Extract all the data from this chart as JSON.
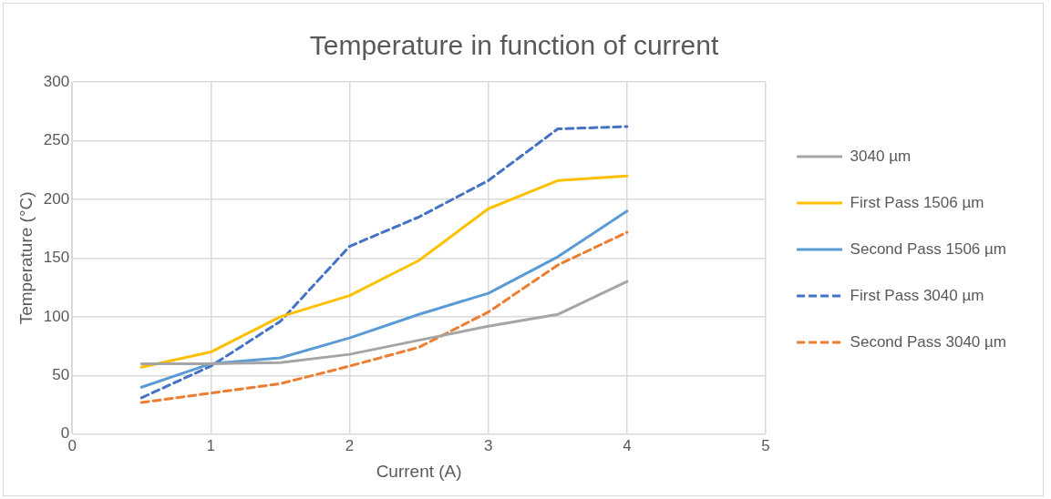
{
  "chart_data": {
    "type": "line",
    "title": "Temperature in function of current",
    "xlabel": "Current (A)",
    "ylabel": "Temperature (°C)",
    "x": [
      0.5,
      1,
      1.5,
      2,
      2.5,
      3,
      3.5,
      4
    ],
    "xlim": [
      0,
      5
    ],
    "xticks": [
      0,
      1,
      2,
      3,
      4,
      5
    ],
    "ylim": [
      0,
      300
    ],
    "yticks": [
      0,
      50,
      100,
      150,
      200,
      250,
      300
    ],
    "grid": true,
    "legend": "right",
    "marker": "none",
    "series": [
      {
        "name": "3040 µm",
        "color": "#a5a5a5",
        "line_style": "solid",
        "values": [
          60,
          60,
          61,
          68,
          80,
          92,
          102,
          130
        ]
      },
      {
        "name": "First Pass 1506 µm",
        "color": "#ffc000",
        "line_style": "solid",
        "values": [
          57,
          70,
          100,
          118,
          148,
          192,
          216,
          220
        ]
      },
      {
        "name": "Second Pass 1506 µm",
        "color": "#5b9bd5",
        "line_style": "solid",
        "values": [
          40,
          60,
          65,
          82,
          102,
          120,
          151,
          190
        ]
      },
      {
        "name": "First Pass 3040 µm",
        "color": "#4472c4",
        "line_style": "dashed",
        "values": [
          31,
          58,
          96,
          160,
          185,
          216,
          260,
          262
        ]
      },
      {
        "name": "Second Pass 3040 µm",
        "color": "#ed7d31",
        "line_style": "dashed",
        "values": [
          27,
          35,
          43,
          58,
          74,
          104,
          144,
          172
        ]
      }
    ]
  }
}
